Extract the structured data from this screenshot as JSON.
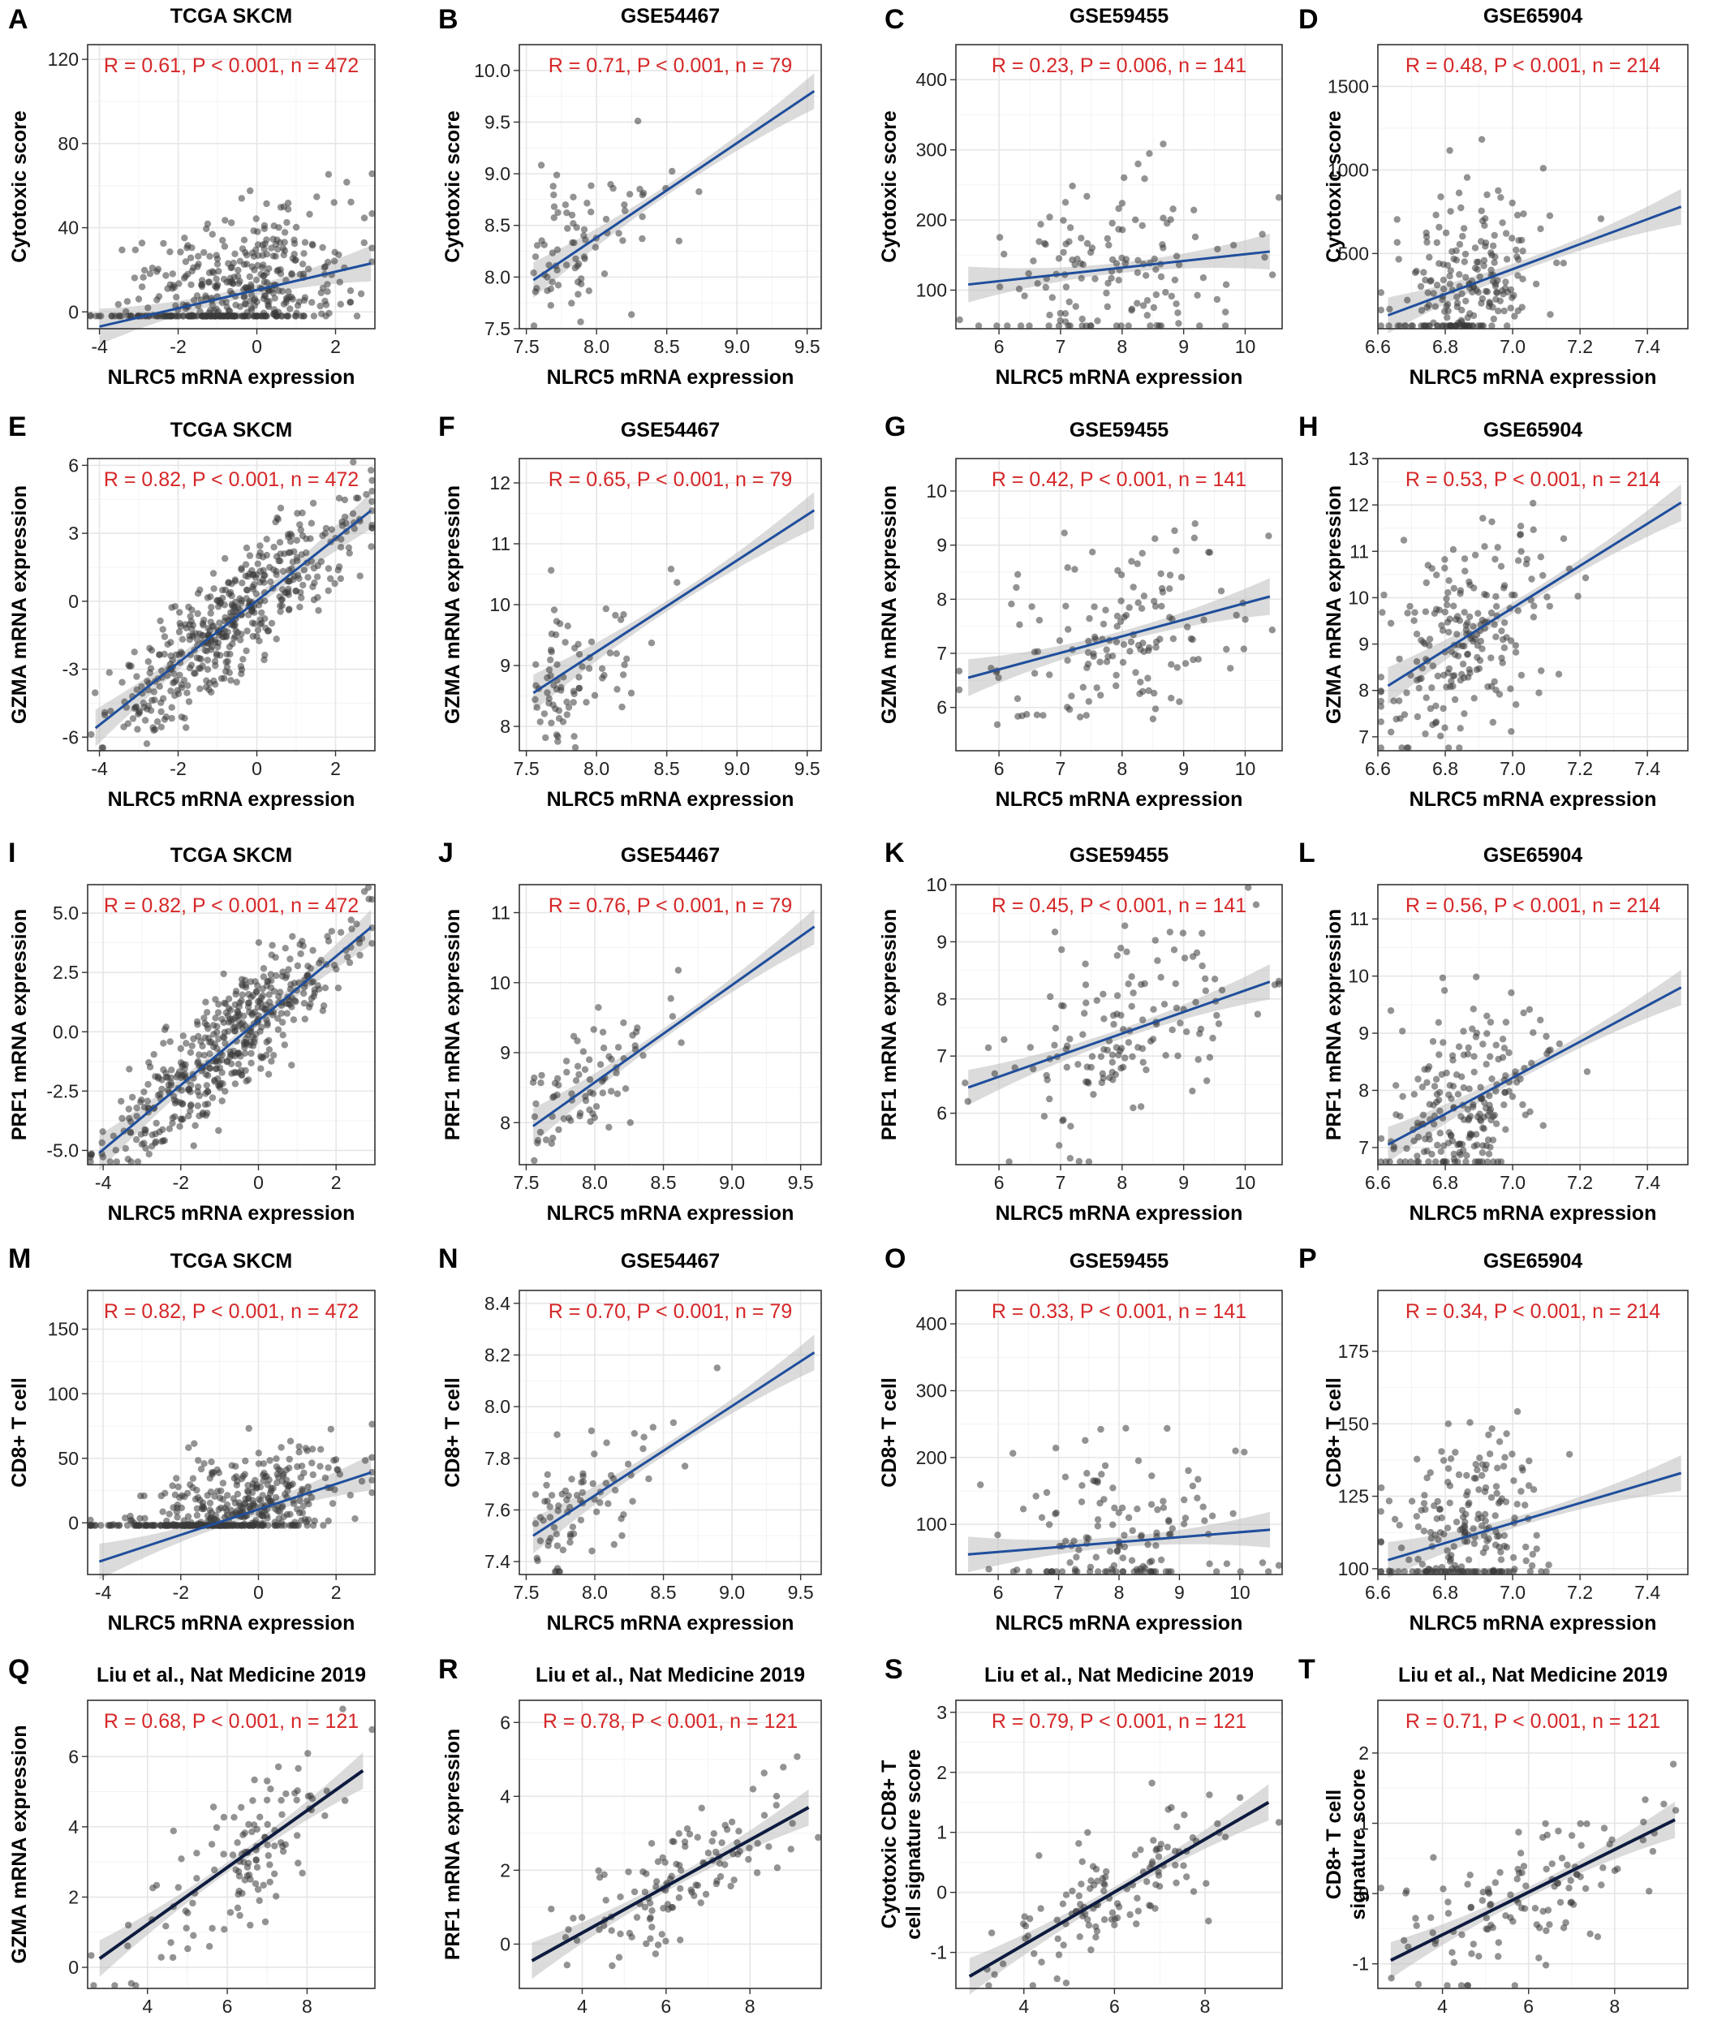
{
  "colors": {
    "stat_text": "#d62728",
    "regression_line": "#1f4e9c",
    "regression_line_dark": "#0d1b3f",
    "confidence_band": "#bdbdbd",
    "points": "#3a3a3a"
  },
  "chart_data": [
    {
      "id": "A",
      "type": "scatter",
      "title": "TCGA SKCM",
      "xlabel": "NLRC5 mRNA expression",
      "ylabel": "Cytotoxic score",
      "stat": "R = 0.61, P < 0.001, n = 472",
      "xlim": [
        -4.3,
        3.0
      ],
      "ylim": [
        -8,
        127
      ],
      "xticks": [
        -4,
        -2,
        0,
        2
      ],
      "yticks": [
        0,
        40,
        80,
        120
      ],
      "n": 472,
      "r": 0.61,
      "line": [
        [
          -4.0,
          -7
        ],
        [
          2.9,
          23
        ]
      ],
      "grid": true,
      "points": "dense cloud"
    },
    {
      "id": "B",
      "type": "scatter",
      "title": "GSE54467",
      "xlabel": "NLRC5 mRNA expression",
      "ylabel": "Cytotoxic score",
      "stat": "R = 0.71, P < 0.001, n = 79",
      "xlim": [
        7.45,
        9.6
      ],
      "ylim": [
        7.5,
        10.25
      ],
      "xticks": [
        7.5,
        8.0,
        8.5,
        9.0,
        9.5
      ],
      "yticks": [
        7.5,
        8.0,
        8.5,
        9.0,
        9.5,
        10.0
      ],
      "n": 79,
      "r": 0.71,
      "line": [
        [
          7.55,
          7.97
        ],
        [
          9.55,
          9.8
        ]
      ],
      "grid": true
    },
    {
      "id": "C",
      "type": "scatter",
      "title": "GSE59455",
      "xlabel": "NLRC5 mRNA expression",
      "ylabel": "Cytotoxic score",
      "stat": "R = 0.23, P = 0.006, n = 141",
      "xlim": [
        5.3,
        10.6
      ],
      "ylim": [
        45,
        450
      ],
      "xticks": [
        6,
        7,
        8,
        9,
        10
      ],
      "yticks": [
        100,
        200,
        300,
        400
      ],
      "n": 141,
      "r": 0.23,
      "line": [
        [
          5.5,
          108
        ],
        [
          10.4,
          155
        ]
      ],
      "grid": true
    },
    {
      "id": "D",
      "type": "scatter",
      "title": "GSE65904",
      "xlabel": "NLRC5 mRNA expression",
      "ylabel": "Cytotoxic score",
      "stat": "R = 0.48, P < 0.001, n = 214",
      "xlim": [
        6.6,
        7.52
      ],
      "ylim": [
        50,
        1750
      ],
      "xticks": [
        6.6,
        6.8,
        7.0,
        7.2,
        7.4
      ],
      "yticks": [
        500,
        1000,
        1500
      ],
      "n": 214,
      "r": 0.48,
      "line": [
        [
          6.63,
          130
        ],
        [
          7.5,
          780
        ]
      ],
      "grid": true
    },
    {
      "id": "E",
      "type": "scatter",
      "title": "TCGA SKCM",
      "xlabel": "NLRC5 mRNA expression",
      "ylabel": "GZMA mRNA expression",
      "stat": "R = 0.82, P < 0.001, n = 472",
      "xlim": [
        -4.3,
        3.0
      ],
      "ylim": [
        -6.6,
        6.3
      ],
      "xticks": [
        -4,
        -2,
        0,
        2
      ],
      "yticks": [
        -6,
        -3,
        0,
        3,
        6
      ],
      "n": 472,
      "r": 0.82,
      "line": [
        [
          -4.1,
          -5.6
        ],
        [
          2.9,
          4.0
        ]
      ],
      "grid": true
    },
    {
      "id": "F",
      "type": "scatter",
      "title": "GSE54467",
      "xlabel": "NLRC5 mRNA expression",
      "ylabel": "GZMA mRNA expression",
      "stat": "R = 0.65, P < 0.001, n = 79",
      "xlim": [
        7.45,
        9.6
      ],
      "ylim": [
        7.6,
        12.4
      ],
      "xticks": [
        7.5,
        8.0,
        8.5,
        9.0,
        9.5
      ],
      "yticks": [
        8,
        9,
        10,
        11,
        12
      ],
      "n": 79,
      "r": 0.65,
      "line": [
        [
          7.55,
          8.55
        ],
        [
          9.55,
          11.55
        ]
      ],
      "grid": true
    },
    {
      "id": "G",
      "type": "scatter",
      "title": "GSE59455",
      "xlabel": "NLRC5 mRNA expression",
      "ylabel": "GZMA mRNA expression",
      "stat": "R = 0.42, P < 0.001, n = 141",
      "xlim": [
        5.3,
        10.6
      ],
      "ylim": [
        5.2,
        10.6
      ],
      "xticks": [
        6,
        7,
        8,
        9,
        10
      ],
      "yticks": [
        6,
        7,
        8,
        9,
        10
      ],
      "n": 141,
      "r": 0.42,
      "line": [
        [
          5.5,
          6.55
        ],
        [
          10.4,
          8.05
        ]
      ],
      "grid": true
    },
    {
      "id": "H",
      "type": "scatter",
      "title": "GSE65904",
      "xlabel": "NLRC5 mRNA expression",
      "ylabel": "GZMA mRNA expression",
      "stat": "R = 0.53, P < 0.001, n = 214",
      "xlim": [
        6.6,
        7.52
      ],
      "ylim": [
        6.7,
        13.0
      ],
      "xticks": [
        6.6,
        6.8,
        7.0,
        7.2,
        7.4
      ],
      "yticks": [
        7,
        8,
        9,
        10,
        11,
        12,
        13
      ],
      "n": 214,
      "r": 0.53,
      "line": [
        [
          6.63,
          8.1
        ],
        [
          7.5,
          12.05
        ]
      ],
      "grid": true
    },
    {
      "id": "I",
      "type": "scatter",
      "title": "TCGA SKCM",
      "xlabel": "NLRC5 mRNA expression",
      "ylabel": "PRF1 mRNA expression",
      "stat": "R = 0.82, P < 0.001, n = 472",
      "xlim": [
        -4.4,
        3.0
      ],
      "ylim": [
        -5.6,
        6.2
      ],
      "xticks": [
        -4,
        -2,
        0,
        2
      ],
      "yticks": [
        -5.0,
        -2.5,
        0.0,
        2.5,
        5.0
      ],
      "n": 472,
      "r": 0.82,
      "line": [
        [
          -4.1,
          -5.1
        ],
        [
          2.9,
          4.4
        ]
      ],
      "grid": true
    },
    {
      "id": "J",
      "type": "scatter",
      "title": "GSE54467",
      "xlabel": "NLRC5 mRNA expression",
      "ylabel": "PRF1 mRNA expression",
      "stat": "R = 0.76, P < 0.001, n = 79",
      "xlim": [
        7.45,
        9.65
      ],
      "ylim": [
        7.4,
        11.4
      ],
      "xticks": [
        7.5,
        8.0,
        8.5,
        9.0,
        9.5
      ],
      "yticks": [
        8,
        9,
        10,
        11
      ],
      "n": 79,
      "r": 0.76,
      "line": [
        [
          7.55,
          7.95
        ],
        [
          9.6,
          10.8
        ]
      ],
      "grid": true
    },
    {
      "id": "K",
      "type": "scatter",
      "title": "GSE59455",
      "xlabel": "NLRC5 mRNA expression",
      "ylabel": "PRF1 mRNA expression",
      "stat": "R = 0.45, P < 0.001, n = 141",
      "xlim": [
        5.3,
        10.6
      ],
      "ylim": [
        5.1,
        10.0
      ],
      "xticks": [
        6,
        7,
        8,
        9,
        10
      ],
      "yticks": [
        6,
        7,
        8,
        9,
        10
      ],
      "n": 141,
      "r": 0.45,
      "line": [
        [
          5.5,
          6.45
        ],
        [
          10.4,
          8.3
        ]
      ],
      "grid": true
    },
    {
      "id": "L",
      "type": "scatter",
      "title": "GSE65904",
      "xlabel": "NLRC5 mRNA expression",
      "ylabel": "PRF1 mRNA expression",
      "stat": "R = 0.56, P < 0.001, n = 214",
      "xlim": [
        6.6,
        7.52
      ],
      "ylim": [
        6.7,
        11.6
      ],
      "xticks": [
        6.6,
        6.8,
        7.0,
        7.2,
        7.4
      ],
      "yticks": [
        7,
        8,
        9,
        10,
        11
      ],
      "n": 214,
      "r": 0.56,
      "line": [
        [
          6.63,
          7.05
        ],
        [
          7.5,
          9.8
        ]
      ],
      "grid": true
    },
    {
      "id": "M",
      "type": "scatter",
      "title": "TCGA SKCM",
      "xlabel": "NLRC5 mRNA expression",
      "ylabel": "CD8+ T cell",
      "stat": "R = 0.82, P < 0.001, n = 472",
      "xlim": [
        -4.4,
        3.0
      ],
      "ylim": [
        -40,
        180
      ],
      "xticks": [
        -4,
        -2,
        0,
        2
      ],
      "yticks": [
        0,
        50,
        100,
        150
      ],
      "n": 472,
      "r": 0.82,
      "line": [
        [
          -4.1,
          -30
        ],
        [
          2.9,
          39
        ]
      ],
      "grid": true
    },
    {
      "id": "N",
      "type": "scatter",
      "title": "GSE54467",
      "xlabel": "NLRC5 mRNA expression",
      "ylabel": "CD8+ T cell",
      "stat": "R = 0.70, P < 0.001, n = 79",
      "xlim": [
        7.45,
        9.65
      ],
      "ylim": [
        7.35,
        8.45
      ],
      "xticks": [
        7.5,
        8.0,
        8.5,
        9.0,
        9.5
      ],
      "yticks": [
        7.4,
        7.6,
        7.8,
        8.0,
        8.2,
        8.4
      ],
      "n": 79,
      "r": 0.7,
      "line": [
        [
          7.55,
          7.5
        ],
        [
          9.6,
          8.21
        ]
      ],
      "grid": true
    },
    {
      "id": "O",
      "type": "scatter",
      "title": "GSE59455",
      "xlabel": "NLRC5 mRNA expression",
      "ylabel": "CD8+ T cell",
      "stat": "R = 0.33, P < 0.001, n = 141",
      "xlim": [
        5.3,
        10.7
      ],
      "ylim": [
        25,
        450
      ],
      "xticks": [
        6,
        7,
        8,
        9,
        10
      ],
      "yticks": [
        100,
        200,
        300,
        400
      ],
      "n": 141,
      "r": 0.33,
      "line": [
        [
          5.5,
          55
        ],
        [
          10.5,
          92
        ]
      ],
      "grid": true
    },
    {
      "id": "P",
      "type": "scatter",
      "title": "GSE65904",
      "xlabel": "NLRC5 mRNA expression",
      "ylabel": "CD8+ T cell",
      "stat": "R = 0.34, P < 0.001, n = 214",
      "xlim": [
        6.6,
        7.52
      ],
      "ylim": [
        98,
        196
      ],
      "xticks": [
        6.6,
        6.8,
        7.0,
        7.2,
        7.4
      ],
      "yticks": [
        100,
        125,
        150,
        175
      ],
      "n": 214,
      "r": 0.34,
      "line": [
        [
          6.63,
          103
        ],
        [
          7.5,
          133
        ]
      ],
      "grid": true
    },
    {
      "id": "Q",
      "type": "scatter",
      "title": "Liu et al., Nat Medicine 2019",
      "xlabel": "NLRC5 mRNA expression",
      "ylabel": "GZMA mRNA expression",
      "stat": "R = 0.68, P < 0.001, n = 121",
      "xlim": [
        2.5,
        9.7
      ],
      "ylim": [
        -0.6,
        7.6
      ],
      "xticks": [
        4,
        6,
        8
      ],
      "yticks": [
        0,
        2,
        4,
        6
      ],
      "n": 121,
      "r": 0.68,
      "line": [
        [
          2.8,
          0.25
        ],
        [
          9.4,
          5.6
        ]
      ],
      "grid": true
    },
    {
      "id": "R",
      "type": "scatter",
      "title": "Liu et al., Nat Medicine 2019",
      "xlabel": "NLRC5 mRNA expression",
      "ylabel": "PRF1 mRNA expression",
      "stat": "R = 0.78, P < 0.001, n = 121",
      "xlim": [
        2.5,
        9.7
      ],
      "ylim": [
        -1.2,
        6.6
      ],
      "xticks": [
        4,
        6,
        8
      ],
      "yticks": [
        0,
        2,
        4,
        6
      ],
      "n": 121,
      "r": 0.78,
      "line": [
        [
          2.8,
          -0.45
        ],
        [
          9.4,
          3.7
        ]
      ],
      "grid": true
    },
    {
      "id": "S",
      "type": "scatter",
      "title": "Liu et al., Nat Medicine 2019",
      "xlabel": "NLRC5 mRNA expression",
      "ylabel_lines": [
        "Cytotoxic CD8+ T",
        "cell signature score"
      ],
      "stat": "R = 0.79, P < 0.001, n = 121",
      "xlim": [
        2.5,
        9.7
      ],
      "ylim": [
        -1.6,
        3.2
      ],
      "xticks": [
        4,
        6,
        8
      ],
      "yticks": [
        -1,
        0,
        1,
        2,
        3
      ],
      "n": 121,
      "r": 0.79,
      "line": [
        [
          2.8,
          -1.4
        ],
        [
          9.4,
          1.5
        ]
      ],
      "grid": true
    },
    {
      "id": "T",
      "type": "scatter",
      "title": "Liu et al., Nat Medicine 2019",
      "xlabel": "NLRC5 mRNA expression",
      "ylabel_lines": [
        "CD8+ T cell",
        "signature score"
      ],
      "stat": "R = 0.71, P < 0.001, n = 121",
      "xlim": [
        2.5,
        9.7
      ],
      "ylim": [
        -1.35,
        2.75
      ],
      "xticks": [
        4,
        6,
        8
      ],
      "yticks": [
        -1,
        0,
        1,
        2
      ],
      "n": 121,
      "r": 0.71,
      "line": [
        [
          2.8,
          -0.95
        ],
        [
          9.4,
          1.05
        ]
      ],
      "grid": true
    }
  ]
}
